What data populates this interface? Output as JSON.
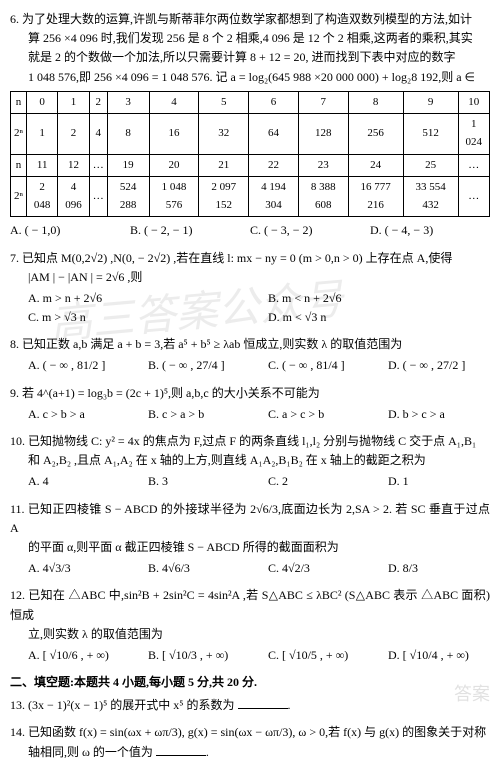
{
  "watermark_text": "高三答案公众号",
  "watermark2_text": "答案",
  "q6": {
    "text_line1": "6. 为了处理大数的运算,许凯与斯蒂菲尔两位数学家都想到了构造双数列模型的方法,如计",
    "text_line2": "算 256 ×4 096 时,我们发现 256 是 8 个 2 相乘,4 096 是 12 个 2 相乘,这两者的乘积,其实",
    "text_line3": "就是 2 的个数做一个加法,所以只需要计算 8 + 12 = 20, 进而找到下表中对应的数字",
    "text_line4": "1 048 576,即 256 ×4 096 = 1 048 576. 记 a = log₂(645 988 ×20 000 000) + log₂8 192,则 a ∈",
    "table_row1": [
      "n",
      "0",
      "1",
      "2",
      "3",
      "4",
      "5",
      "6",
      "7",
      "8",
      "9",
      "10"
    ],
    "table_row2": [
      "2ⁿ",
      "1",
      "2",
      "4",
      "8",
      "16",
      "32",
      "64",
      "128",
      "256",
      "512",
      "1 024"
    ],
    "table_row3": [
      "n",
      "11",
      "12",
      "…",
      "19",
      "20",
      "21",
      "22",
      "23",
      "24",
      "25",
      "…"
    ],
    "table_row4": [
      "2ⁿ",
      "2 048",
      "4 096",
      "…",
      "524 288",
      "1 048 576",
      "2 097 152",
      "4 194 304",
      "8 388 608",
      "16 777 216",
      "33 554 432",
      "…"
    ],
    "opts": [
      "A. ( − 1,0)",
      "B. ( − 2, − 1)",
      "C. ( − 3, − 2)",
      "D. ( − 4, − 3)"
    ]
  },
  "q7": {
    "text_line1": "7. 已知点 M(0,2√2) ,N(0, − 2√2) ,若在直线 l: mx − ny = 0 (m > 0,n > 0) 上存在点 A,使得",
    "text_line2": "|AM | − |AN | = 2√6 ,则",
    "opts": [
      "A. m > n + 2√6",
      "B. m < n + 2√6",
      "C. m > √3 n",
      "D. m < √3 n"
    ]
  },
  "q8": {
    "text_line1": "8. 已知正数 a,b 满足 a + b = 3,若 a⁵ + b⁵ ≥ λab 恒成立,则实数 λ 的取值范围为",
    "opts": [
      "A. ( − ∞ , 81/2 ]",
      "B. ( − ∞ , 27/4 ]",
      "C. ( − ∞ , 81/4 ]",
      "D. ( − ∞ , 27/2 ]"
    ]
  },
  "q9": {
    "text_line1": "9. 若 4^(a+1) = log₃b = (2c + 1)⁵,则 a,b,c 的大小关系不可能为",
    "opts": [
      "A. c > b > a",
      "B. c > a > b",
      "C. a > c > b",
      "D. b > c > a"
    ]
  },
  "q10": {
    "text_line1": "10. 已知抛物线 C: y² = 4x 的焦点为 F,过点 F 的两条直线 l₁,l₂ 分别与抛物线 C 交于点 A₁,B₁",
    "text_line2": "和 A₂,B₂ ,且点 A₁,A₂ 在 x 轴的上方,则直线 A₁A₂,B₁B₂ 在 x 轴上的截距之积为",
    "opts": [
      "A. 4",
      "B. 3",
      "C. 2",
      "D. 1"
    ]
  },
  "q11": {
    "text_line1": "11. 已知正四棱锥 S − ABCD 的外接球半径为 2√6/3,底面边长为 2,SA > 2. 若 SC 垂直于过点 A",
    "text_line2": "的平面 α,则平面 α 截正四棱锥 S − ABCD 所得的截面面积为",
    "opts": [
      "A. 4√3/3",
      "B. 4√6/3",
      "C. 4√2/3",
      "D. 8/3"
    ]
  },
  "q12": {
    "text_line1": "12. 已知在 △ABC 中,sin²B + 2sin²C = 4sin²A ,若 S△ABC ≤ λBC² (S△ABC 表示 △ABC 面积) 恒成",
    "text_line2": "立,则实数 λ 的取值范围为",
    "opts": [
      "A. [ √10/6 , + ∞)",
      "B. [ √10/3 , + ∞)",
      "C. [ √10/5 , + ∞)",
      "D. [ √10/4 , + ∞)"
    ]
  },
  "section2_title": "二、填空题:本题共 4 小题,每小题 5 分,共 20 分.",
  "q13": {
    "text": "13. (3x − 1)²(x − 1)⁵ 的展开式中 x⁵ 的系数为"
  },
  "q14": {
    "text_line1": "14. 已知函数 f(x) = sin(ωx + ωπ/3), g(x) = sin(ωx − ωπ/3), ω > 0,若 f(x) 与 g(x) 的图象关于对称",
    "text_line2": "轴相同,则 ω 的一个值为"
  }
}
